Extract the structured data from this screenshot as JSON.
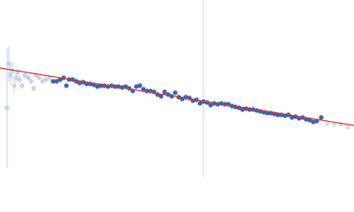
{
  "chart_data": {
    "type": "scatter",
    "xlim": [
      0,
      400
    ],
    "ylim": [
      0,
      200
    ],
    "marker_x": 230,
    "marker_color": "#c8d4ea",
    "series": [
      {
        "color": "#c5d3ea",
        "x": [
          8,
          10,
          12,
          14,
          16,
          18,
          20,
          22,
          25,
          28,
          32,
          35,
          38,
          40,
          44,
          48,
          52,
          56
        ],
        "values": [
          78,
          128,
          115,
          120,
          103,
          112,
          118,
          110,
          103,
          115,
          112,
          108,
          100,
          115,
          112,
          108,
          110,
          112
        ],
        "errors": [
          68,
          20,
          12,
          10,
          8,
          6,
          5,
          5,
          4,
          4,
          3,
          3,
          3,
          2,
          2,
          2,
          2,
          2
        ]
      },
      {
        "color": "#3a64b0",
        "x": [
          60,
          64,
          68,
          72,
          75,
          78,
          82,
          86,
          90,
          94,
          98,
          102,
          106,
          110,
          114,
          118,
          122,
          126,
          130,
          134,
          138,
          142,
          146,
          150,
          154,
          158,
          162,
          166,
          170,
          174,
          178,
          182,
          186,
          190,
          194,
          198,
          202,
          206,
          210,
          214,
          218,
          222,
          226,
          230,
          234,
          238,
          242,
          246,
          250,
          254,
          258,
          262,
          266,
          270,
          274,
          278,
          282,
          286,
          290,
          294,
          298,
          302,
          306,
          310,
          314,
          318,
          322,
          326,
          330,
          334,
          338,
          342,
          346,
          350,
          354,
          358,
          363
        ],
        "values": [
          108,
          108,
          110,
          112,
          103,
          110,
          110,
          108,
          106,
          107,
          105,
          105,
          104,
          102,
          103,
          103,
          102,
          103,
          102,
          102,
          101,
          102,
          100,
          97,
          102,
          103,
          99,
          97,
          97,
          96,
          93,
          91,
          96,
          93,
          91,
          95,
          90,
          88,
          90,
          89,
          86,
          87,
          83,
          85,
          84,
          81,
          83,
          82,
          83,
          82,
          82,
          80,
          79,
          78,
          76,
          77,
          76,
          76,
          75,
          74,
          73,
          72,
          72,
          71,
          70,
          70,
          69,
          70,
          67,
          68,
          66,
          67,
          65,
          64,
          62,
          63,
          67
        ]
      },
      {
        "color": "#d6dce8",
        "x": [
          370,
          378,
          385,
          393
        ],
        "values": [
          60,
          59,
          59,
          56
        ]
      },
      {
        "color": "#d9352b",
        "mode": "line",
        "x": [
          0,
          400
        ],
        "values": [
          123,
          58
        ]
      }
    ]
  }
}
